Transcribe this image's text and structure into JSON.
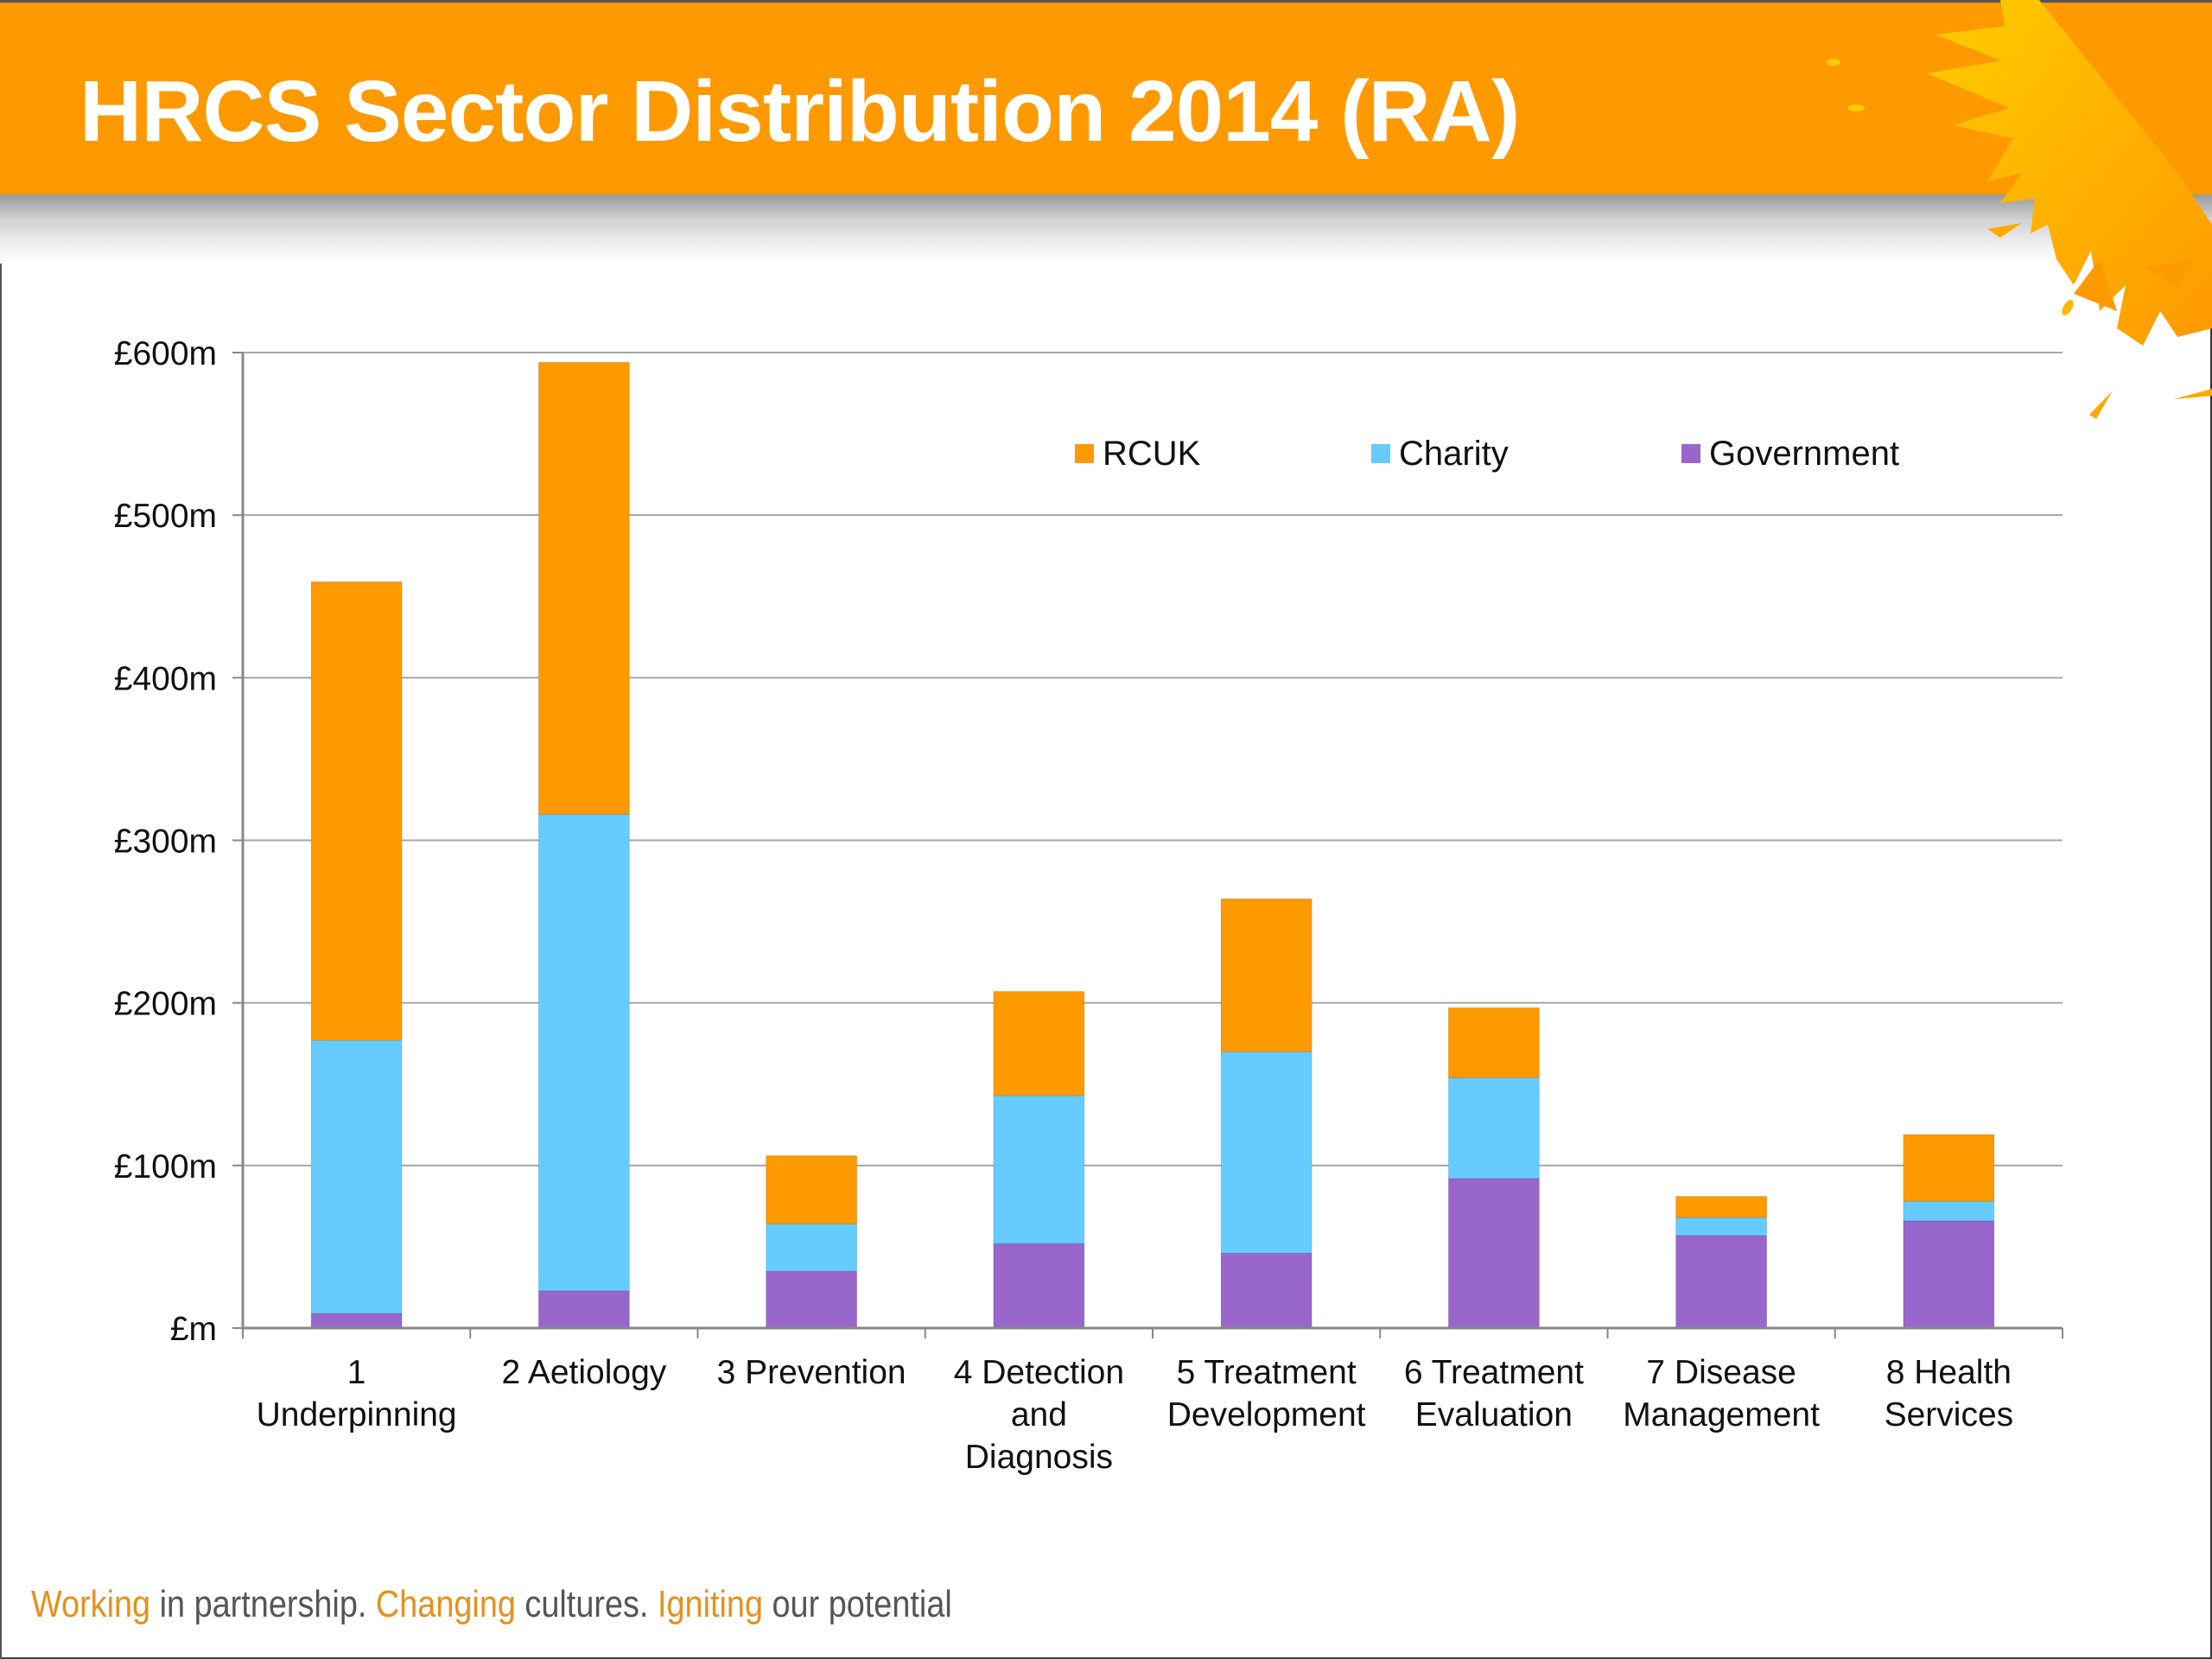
{
  "slide": {
    "title": "HRCS Sector Distribution 2014 (RA)",
    "tagline": [
      {
        "text": "Working",
        "accent": true
      },
      {
        "text": " in partnership. ",
        "accent": false
      },
      {
        "text": "Changing",
        "accent": true
      },
      {
        "text": " cultures. ",
        "accent": false
      },
      {
        "text": "Igniting",
        "accent": true
      },
      {
        "text": " our potential",
        "accent": false
      }
    ],
    "colors": {
      "header": "#ff9900",
      "splash": "#ffc400",
      "tagline_accent": "#e8901a"
    }
  },
  "chart_data": {
    "type": "bar",
    "stacked": true,
    "title": "HRCS Sector Distribution 2014 (RA)",
    "xlabel": "",
    "ylabel": "",
    "categories": [
      [
        "1",
        "Underpinning"
      ],
      [
        "2 Aetiology"
      ],
      [
        "3 Prevention"
      ],
      [
        "4 Detection",
        "and",
        "Diagnosis"
      ],
      [
        "5 Treatment",
        "Development"
      ],
      [
        "6 Treatment",
        "Evaluation"
      ],
      [
        "7 Disease",
        "Management"
      ],
      [
        "8 Health",
        "Services"
      ]
    ],
    "series": [
      {
        "name": "Government",
        "color": "#9966cc",
        "values": [
          9,
          23,
          35,
          52,
          46,
          92,
          57,
          66
        ]
      },
      {
        "name": "Charity",
        "color": "#66ccff",
        "values": [
          168,
          293,
          29,
          91,
          124,
          62,
          11,
          12
        ]
      },
      {
        "name": "RCUK",
        "color": "#ff9900",
        "values": [
          282,
          278,
          42,
          64,
          94,
          43,
          13,
          41
        ]
      }
    ],
    "legend_order": [
      "RCUK",
      "Charity",
      "Government"
    ],
    "legend_position": "top-right inside plot",
    "ylim": [
      0,
      600
    ],
    "yticks": [
      0,
      100,
      200,
      300,
      400,
      500,
      600
    ],
    "ytick_labels": [
      "£m",
      "£100m",
      "£200m",
      "£300m",
      "£400m",
      "£500m",
      "£600m"
    ],
    "grid": true,
    "units": "£ millions"
  }
}
